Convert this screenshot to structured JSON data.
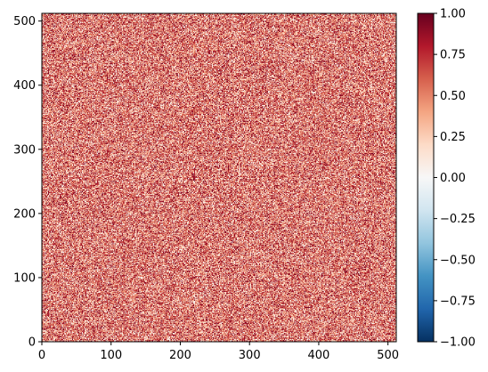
{
  "chart_data": {
    "type": "heatmap",
    "title": "",
    "xlabel": "",
    "ylabel": "",
    "xlim": [
      0,
      512
    ],
    "ylim": [
      0,
      512
    ],
    "x_ticks": [
      0,
      100,
      200,
      300,
      400,
      500
    ],
    "y_ticks": [
      0,
      100,
      200,
      300,
      400,
      500
    ],
    "x_tick_labels": [
      "0",
      "100",
      "200",
      "300",
      "400",
      "500"
    ],
    "y_tick_labels": [
      "0",
      "100",
      "200",
      "300",
      "400",
      "500"
    ],
    "grid_shape": [
      512,
      512
    ],
    "value_distribution": "uniform random in [0, 1]",
    "origin": "lower",
    "colormap": "RdBu_r",
    "colormap_stops": [
      {
        "v": 0.0,
        "color": "#053061"
      },
      {
        "v": 0.1,
        "color": "#2166ac"
      },
      {
        "v": 0.2,
        "color": "#4393c3"
      },
      {
        "v": 0.3,
        "color": "#92c5de"
      },
      {
        "v": 0.4,
        "color": "#d1e5f0"
      },
      {
        "v": 0.5,
        "color": "#f7f7f7"
      },
      {
        "v": 0.6,
        "color": "#fddbc7"
      },
      {
        "v": 0.7,
        "color": "#f4a582"
      },
      {
        "v": 0.8,
        "color": "#d6604d"
      },
      {
        "v": 0.9,
        "color": "#b2182b"
      },
      {
        "v": 1.0,
        "color": "#67001f"
      }
    ],
    "colorbar": {
      "vmin": -1.0,
      "vmax": 1.0,
      "ticks": [
        -1.0,
        -0.75,
        -0.5,
        -0.25,
        0.0,
        0.25,
        0.5,
        0.75,
        1.0
      ],
      "tick_labels": [
        "−1.00",
        "−0.75",
        "−0.50",
        "−0.25",
        "0.00",
        "0.25",
        "0.50",
        "0.75",
        "1.00"
      ],
      "placement": "right"
    }
  }
}
